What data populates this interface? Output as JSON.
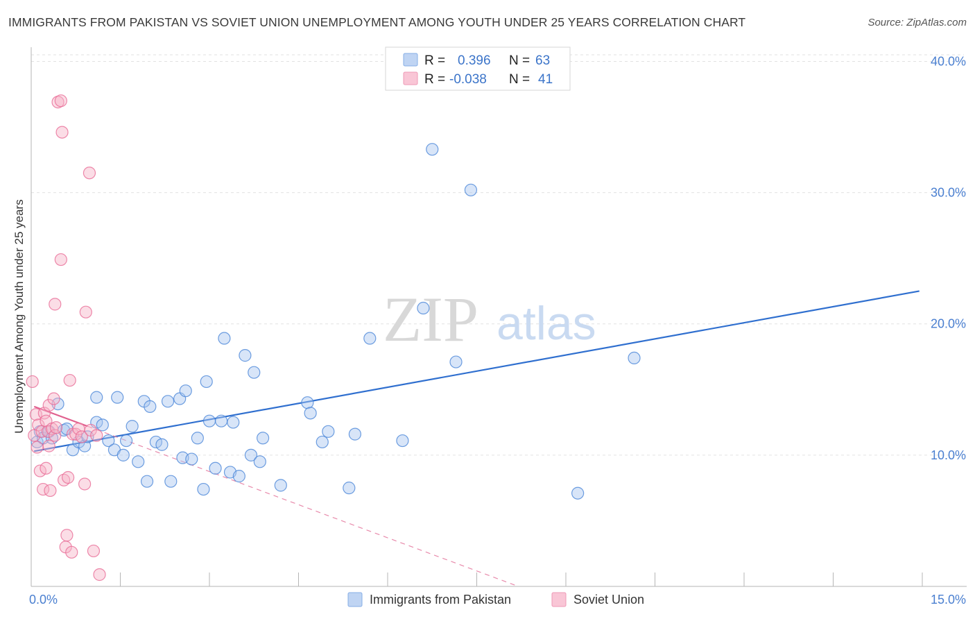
{
  "title": "IMMIGRANTS FROM PAKISTAN VS SOVIET UNION UNEMPLOYMENT AMONG YOUTH UNDER 25 YEARS CORRELATION CHART",
  "source": "Source: ZipAtlas.com",
  "watermark": {
    "zip": "ZIP",
    "atlas": "atlas"
  },
  "legend": {
    "rows": [
      {
        "r_label": "R =",
        "r_value": "0.396",
        "n_label": "N =",
        "n_value": "63",
        "color": "#a9c6ef"
      },
      {
        "r_label": "R =",
        "r_value": "-0.038",
        "n_label": "N =",
        "n_value": "41",
        "color": "#f6b3c8"
      }
    ]
  },
  "chart_data": {
    "type": "scatter",
    "title": "IMMIGRANTS FROM PAKISTAN VS SOVIET UNION UNEMPLOYMENT AMONG YOUTH UNDER 25 YEARS CORRELATION CHART",
    "xlabel": "",
    "ylabel": "Unemployment Among Youth under 25 years",
    "xlim": [
      0,
      15
    ],
    "ylim": [
      0,
      40.5
    ],
    "x_tick_labels": [
      "0.0%",
      "15.0%"
    ],
    "y_ticks": [
      10,
      20,
      30,
      40
    ],
    "y_tick_labels": [
      "10.0%",
      "20.0%",
      "30.0%",
      "40.0%"
    ],
    "grid": true,
    "legend_position": "top-center",
    "series": [
      {
        "name": "Immigrants from Pakistan",
        "color": "#4a86d8",
        "fill": "#a9c6ef",
        "trend": {
          "x": [
            0.05,
            14.95
          ],
          "y": [
            10.3,
            22.5
          ],
          "style": "solid"
        },
        "points": [
          [
            0.1,
            11.0
          ],
          [
            0.15,
            11.8
          ],
          [
            0.2,
            11.3
          ],
          [
            0.3,
            11.8
          ],
          [
            0.35,
            11.3
          ],
          [
            0.45,
            13.9
          ],
          [
            0.55,
            11.9
          ],
          [
            0.6,
            12.0
          ],
          [
            0.7,
            10.4
          ],
          [
            0.8,
            11.0
          ],
          [
            0.9,
            10.7
          ],
          [
            0.95,
            11.4
          ],
          [
            1.1,
            12.5
          ],
          [
            1.1,
            14.4
          ],
          [
            1.2,
            12.3
          ],
          [
            1.3,
            11.1
          ],
          [
            1.4,
            10.4
          ],
          [
            1.45,
            14.4
          ],
          [
            1.55,
            10.0
          ],
          [
            1.6,
            11.1
          ],
          [
            1.7,
            12.2
          ],
          [
            1.8,
            9.5
          ],
          [
            1.9,
            14.1
          ],
          [
            1.95,
            8.0
          ],
          [
            2.0,
            13.7
          ],
          [
            2.1,
            11.0
          ],
          [
            2.2,
            10.8
          ],
          [
            2.3,
            14.1
          ],
          [
            2.35,
            8.0
          ],
          [
            2.5,
            14.3
          ],
          [
            2.55,
            9.8
          ],
          [
            2.6,
            14.9
          ],
          [
            2.7,
            9.7
          ],
          [
            2.8,
            11.3
          ],
          [
            2.9,
            7.4
          ],
          [
            2.95,
            15.6
          ],
          [
            3.0,
            12.6
          ],
          [
            3.1,
            9.0
          ],
          [
            3.2,
            12.6
          ],
          [
            3.25,
            18.9
          ],
          [
            3.35,
            8.7
          ],
          [
            3.4,
            12.5
          ],
          [
            3.5,
            8.4
          ],
          [
            3.6,
            17.6
          ],
          [
            3.7,
            10.0
          ],
          [
            3.75,
            16.3
          ],
          [
            3.85,
            9.5
          ],
          [
            3.9,
            11.3
          ],
          [
            4.2,
            7.7
          ],
          [
            4.65,
            14.0
          ],
          [
            4.7,
            13.2
          ],
          [
            4.9,
            11.0
          ],
          [
            5.0,
            11.8
          ],
          [
            5.35,
            7.5
          ],
          [
            5.45,
            11.6
          ],
          [
            5.7,
            18.9
          ],
          [
            6.25,
            11.1
          ],
          [
            6.6,
            21.2
          ],
          [
            6.75,
            33.3
          ],
          [
            7.15,
            17.1
          ],
          [
            7.4,
            30.2
          ],
          [
            9.2,
            7.1
          ],
          [
            10.15,
            17.4
          ]
        ]
      },
      {
        "name": "Soviet Union",
        "color": "#e86c96",
        "fill": "#f6b3c8",
        "trend_solid": {
          "x": [
            0.05,
            0.95
          ],
          "y": [
            13.7,
            12.2
          ]
        },
        "trend_dashed": {
          "x": [
            0.95,
            8.2
          ],
          "y": [
            12.2,
            0.0
          ]
        },
        "points": [
          [
            0.02,
            15.6
          ],
          [
            0.05,
            11.5
          ],
          [
            0.08,
            13.1
          ],
          [
            0.1,
            10.6
          ],
          [
            0.12,
            12.3
          ],
          [
            0.15,
            8.8
          ],
          [
            0.18,
            11.8
          ],
          [
            0.2,
            7.4
          ],
          [
            0.22,
            13.2
          ],
          [
            0.25,
            9.0
          ],
          [
            0.25,
            12.6
          ],
          [
            0.28,
            11.8
          ],
          [
            0.3,
            13.8
          ],
          [
            0.3,
            10.7
          ],
          [
            0.32,
            7.3
          ],
          [
            0.35,
            12.0
          ],
          [
            0.38,
            14.3
          ],
          [
            0.4,
            11.5
          ],
          [
            0.4,
            21.5
          ],
          [
            0.42,
            12.1
          ],
          [
            0.45,
            36.9
          ],
          [
            0.5,
            37.0
          ],
          [
            0.5,
            24.9
          ],
          [
            0.52,
            34.6
          ],
          [
            0.55,
            8.1
          ],
          [
            0.58,
            3.0
          ],
          [
            0.6,
            3.9
          ],
          [
            0.62,
            8.3
          ],
          [
            0.65,
            15.7
          ],
          [
            0.68,
            2.6
          ],
          [
            0.7,
            11.6
          ],
          [
            0.75,
            11.6
          ],
          [
            0.8,
            12.0
          ],
          [
            0.85,
            11.4
          ],
          [
            0.9,
            7.8
          ],
          [
            0.92,
            20.9
          ],
          [
            0.98,
            31.5
          ],
          [
            1.0,
            11.9
          ],
          [
            1.05,
            2.7
          ],
          [
            1.1,
            11.5
          ],
          [
            1.15,
            0.9
          ]
        ]
      }
    ]
  }
}
